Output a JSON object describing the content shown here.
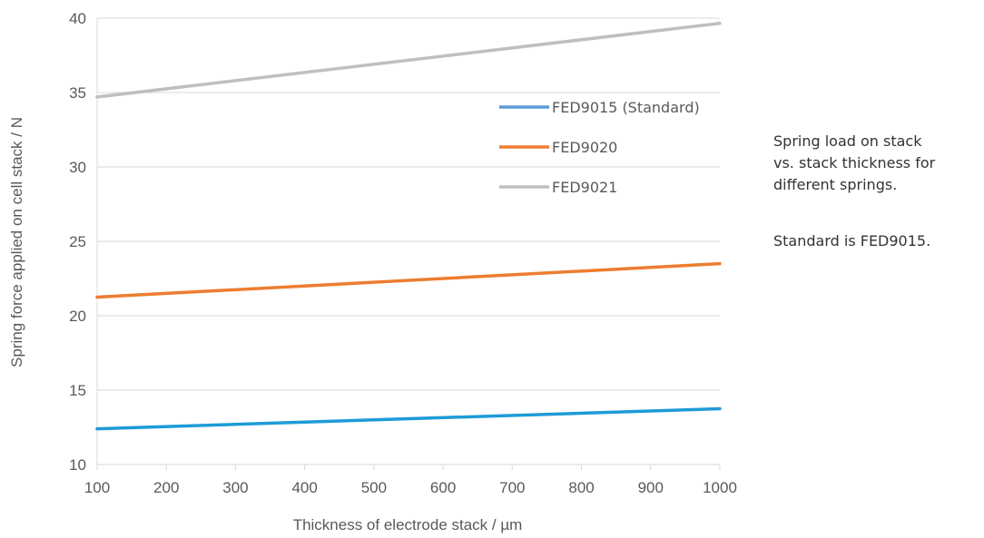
{
  "chart_data": {
    "type": "line",
    "title": "",
    "xlabel": "Thickness of electrode stack / µm",
    "ylabel": "Spring force applied on cell stack / N",
    "xlim": [
      100,
      1000
    ],
    "ylim": [
      10,
      40
    ],
    "x_ticks": [
      "100",
      "200",
      "300",
      "400",
      "500",
      "600",
      "700",
      "800",
      "900",
      "1000"
    ],
    "y_ticks": [
      "10",
      "15",
      "20",
      "25",
      "30",
      "35",
      "40"
    ],
    "grid": "horizontal",
    "legend_position": "upper-right inside plot",
    "x": [
      100,
      1000
    ],
    "series": [
      {
        "name": "FED9015 (Standard)",
        "color": "#1f9bd7",
        "values": [
          12.4,
          13.75
        ]
      },
      {
        "name": "FED9020",
        "color": "#ed7d31",
        "values": [
          21.25,
          23.5
        ]
      },
      {
        "name": "FED9021",
        "color": "#bfbfbf",
        "values": [
          34.7,
          39.65
        ]
      }
    ]
  },
  "notes": {
    "lines": [
      "Spring load on stack",
      "vs. stack thickness for",
      "different springs."
    ],
    "standard": "Standard is FED9015."
  },
  "legend_swatch_color": "#5b9bd5"
}
